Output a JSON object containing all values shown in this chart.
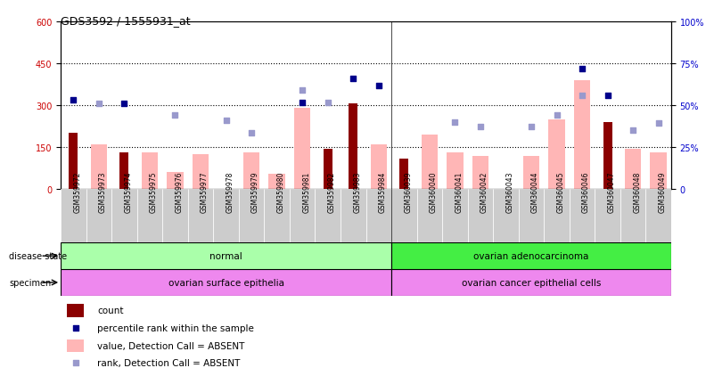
{
  "title": "GDS3592 / 1555931_at",
  "samples": [
    "GSM359972",
    "GSM359973",
    "GSM359974",
    "GSM359975",
    "GSM359976",
    "GSM359977",
    "GSM359978",
    "GSM359979",
    "GSM359980",
    "GSM359981",
    "GSM359982",
    "GSM359983",
    "GSM359984",
    "GSM360039",
    "GSM360040",
    "GSM360041",
    "GSM360042",
    "GSM360043",
    "GSM360044",
    "GSM360045",
    "GSM360046",
    "GSM360047",
    "GSM360048",
    "GSM360049"
  ],
  "count": [
    200,
    0,
    130,
    0,
    0,
    0,
    0,
    0,
    0,
    0,
    145,
    305,
    0,
    110,
    0,
    0,
    0,
    0,
    0,
    0,
    0,
    240,
    0,
    0
  ],
  "percentile_rank": [
    320,
    null,
    305,
    null,
    null,
    null,
    null,
    null,
    null,
    310,
    null,
    395,
    370,
    null,
    null,
    null,
    null,
    null,
    null,
    null,
    430,
    335,
    null,
    null
  ],
  "value_absent": [
    0,
    160,
    0,
    130,
    60,
    125,
    0,
    130,
    55,
    290,
    0,
    0,
    160,
    0,
    195,
    130,
    120,
    0,
    120,
    250,
    390,
    0,
    145,
    130
  ],
  "rank_absent": [
    null,
    305,
    null,
    null,
    265,
    null,
    245,
    200,
    null,
    355,
    310,
    null,
    null,
    null,
    null,
    240,
    225,
    null,
    225,
    265,
    335,
    null,
    210,
    235
  ],
  "left_yticks": [
    0,
    150,
    300,
    450,
    600
  ],
  "right_yticks": [
    0,
    25,
    50,
    75,
    100
  ],
  "left_color": "#cc0000",
  "right_color": "#0000cc",
  "bar_count_color": "#8b0000",
  "bar_value_color": "#ffb6b6",
  "dot_rank_color": "#00008b",
  "dot_rank_absent_color": "#9999cc",
  "disease_state_normal": "normal",
  "disease_state_cancer": "ovarian adenocarcinoma",
  "specimen_normal": "ovarian surface epithelia",
  "specimen_cancer": "ovarian cancer epithelial cells",
  "split_index": 13,
  "bg_color": "#ffffff",
  "plot_bg_color": "#ffffff",
  "normal_green": "#aaffaa",
  "cancer_green": "#44ee44",
  "specimen_pink": "#ee88ee"
}
